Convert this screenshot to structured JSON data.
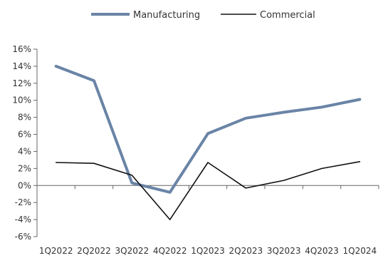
{
  "chart_data": {
    "type": "line",
    "categories": [
      "1Q2022",
      "2Q2022",
      "3Q2022",
      "4Q2022",
      "1Q2023",
      "2Q2023",
      "3Q2023",
      "4Q2023",
      "1Q2024"
    ],
    "series": [
      {
        "name": "Manufacturing",
        "color": "#6a84a6",
        "values": [
          14.0,
          12.3,
          0.3,
          -0.8,
          6.1,
          7.9,
          8.6,
          9.2,
          10.1
        ]
      },
      {
        "name": "Commercial",
        "color": "#111111",
        "values": [
          2.7,
          2.6,
          1.2,
          -4.0,
          2.7,
          -0.3,
          0.6,
          2.0,
          2.8
        ]
      }
    ],
    "ylim": [
      -6,
      16
    ],
    "yticks": [
      16,
      14,
      12,
      10,
      8,
      6,
      4,
      2,
      0,
      -2,
      -4,
      -6
    ],
    "ytick_labels": [
      "16%",
      "14%",
      "12%",
      "10%",
      "8%",
      "6%",
      "4%",
      "2%",
      "0%",
      "-2%",
      "-4%",
      "-6%"
    ],
    "legend_position": "top-center",
    "grid": false
  }
}
